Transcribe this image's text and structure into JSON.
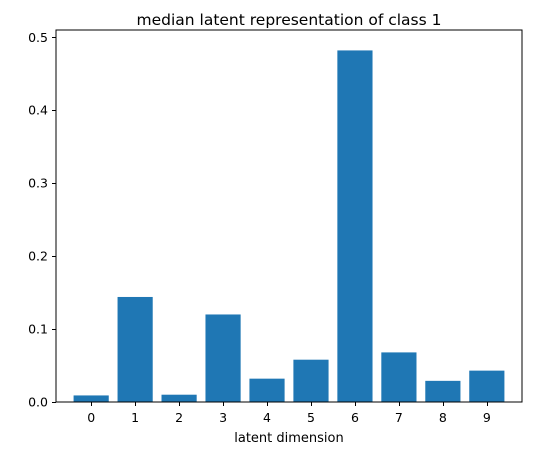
{
  "chart_data": {
    "type": "bar",
    "title": "median latent representation of class 1",
    "xlabel": "latent dimension",
    "ylabel": "",
    "categories": [
      "0",
      "1",
      "2",
      "3",
      "4",
      "5",
      "6",
      "7",
      "8",
      "9"
    ],
    "values": [
      0.009,
      0.144,
      0.01,
      0.12,
      0.032,
      0.058,
      0.482,
      0.068,
      0.029,
      0.043
    ],
    "ylim": [
      0,
      0.51
    ],
    "yticks": [
      0.0,
      0.1,
      0.2,
      0.3,
      0.4,
      0.5
    ],
    "ytick_labels": [
      "0.0",
      "0.1",
      "0.2",
      "0.3",
      "0.4",
      "0.5"
    ],
    "grid": false,
    "bar_color": "#1f77b4"
  }
}
